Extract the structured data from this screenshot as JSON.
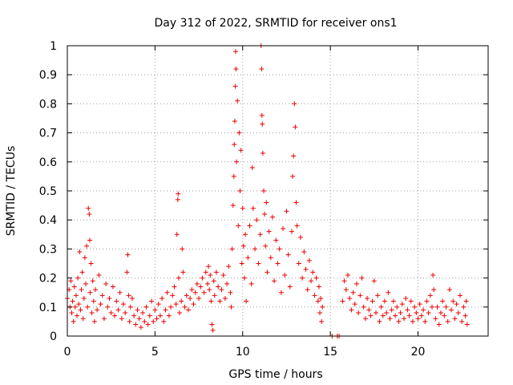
{
  "chart_data": {
    "type": "scatter",
    "title": "Day 312 of 2022, SRMTID for receiver ons1",
    "xlabel": "GPS time / hours",
    "ylabel": "SRMTID / TECUs",
    "xlim": [
      0,
      24
    ],
    "ylim": [
      0,
      1
    ],
    "xticks": [
      0,
      5,
      10,
      15,
      20
    ],
    "xtick_labels": [
      "0",
      "5",
      "10",
      "15",
      "20"
    ],
    "yticks": [
      0,
      0.1,
      0.2,
      0.3,
      0.4,
      0.5,
      0.6,
      0.7,
      0.8,
      0.9,
      1
    ],
    "ytick_labels": [
      "0",
      "0.1",
      "0.2",
      "0.3",
      "0.4",
      "0.5",
      "0.6",
      "0.7",
      "0.8",
      "0.9",
      "1"
    ],
    "grid": true,
    "marker": "+",
    "color": "#ee0000",
    "series": [
      {
        "name": "SRMTID",
        "points": [
          [
            0.0,
            0.13
          ],
          [
            0.1,
            0.16
          ],
          [
            0.15,
            0.1
          ],
          [
            0.2,
            0.19
          ],
          [
            0.25,
            0.08
          ],
          [
            0.3,
            0.12
          ],
          [
            0.35,
            0.05
          ],
          [
            0.4,
            0.17
          ],
          [
            0.45,
            0.1
          ],
          [
            0.5,
            0.14
          ],
          [
            0.55,
            0.07
          ],
          [
            0.6,
            0.2
          ],
          [
            0.65,
            0.11
          ],
          [
            0.7,
            0.29
          ],
          [
            0.75,
            0.09
          ],
          [
            0.8,
            0.16
          ],
          [
            0.85,
            0.22
          ],
          [
            0.9,
            0.06
          ],
          [
            0.95,
            0.13
          ],
          [
            1.0,
            0.27
          ],
          [
            1.05,
            0.18
          ],
          [
            1.1,
            0.31
          ],
          [
            1.15,
            0.1
          ],
          [
            1.2,
            0.44
          ],
          [
            1.25,
            0.42
          ],
          [
            1.28,
            0.33
          ],
          [
            1.3,
            0.15
          ],
          [
            1.35,
            0.25
          ],
          [
            1.4,
            0.08
          ],
          [
            1.45,
            0.19
          ],
          [
            1.5,
            0.12
          ],
          [
            1.55,
            0.05
          ],
          [
            1.6,
            0.16
          ],
          [
            1.7,
            0.09
          ],
          [
            1.8,
            0.21
          ],
          [
            1.9,
            0.11
          ],
          [
            2.0,
            0.14
          ],
          [
            2.1,
            0.06
          ],
          [
            2.2,
            0.18
          ],
          [
            2.3,
            0.1
          ],
          [
            2.4,
            0.13
          ],
          [
            2.5,
            0.08
          ],
          [
            2.6,
            0.17
          ],
          [
            2.7,
            0.07
          ],
          [
            2.8,
            0.12
          ],
          [
            2.9,
            0.09
          ],
          [
            3.0,
            0.15
          ],
          [
            3.1,
            0.06
          ],
          [
            3.2,
            0.11
          ],
          [
            3.3,
            0.08
          ],
          [
            3.4,
            0.22
          ],
          [
            3.45,
            0.28
          ],
          [
            3.5,
            0.14
          ],
          [
            3.55,
            0.05
          ],
          [
            3.6,
            0.1
          ],
          [
            3.7,
            0.13
          ],
          [
            3.8,
            0.07
          ],
          [
            3.9,
            0.04
          ],
          [
            4.0,
            0.09
          ],
          [
            4.1,
            0.06
          ],
          [
            4.2,
            0.03
          ],
          [
            4.3,
            0.08
          ],
          [
            4.4,
            0.05
          ],
          [
            4.5,
            0.1
          ],
          [
            4.6,
            0.04
          ],
          [
            4.7,
            0.07
          ],
          [
            4.8,
            0.12
          ],
          [
            4.9,
            0.05
          ],
          [
            5.0,
            0.09
          ],
          [
            5.1,
            0.06
          ],
          [
            5.2,
            0.11
          ],
          [
            5.3,
            0.07
          ],
          [
            5.4,
            0.13
          ],
          [
            5.5,
            0.05
          ],
          [
            5.6,
            0.09
          ],
          [
            5.7,
            0.15
          ],
          [
            5.8,
            0.07
          ],
          [
            5.9,
            0.1
          ],
          [
            6.0,
            0.14
          ],
          [
            6.1,
            0.17
          ],
          [
            6.2,
            0.11
          ],
          [
            6.25,
            0.35
          ],
          [
            6.3,
            0.47
          ],
          [
            6.32,
            0.49
          ],
          [
            6.35,
            0.2
          ],
          [
            6.4,
            0.08
          ],
          [
            6.5,
            0.12
          ],
          [
            6.55,
            0.3
          ],
          [
            6.6,
            0.22
          ],
          [
            6.7,
            0.1
          ],
          [
            6.8,
            0.14
          ],
          [
            6.9,
            0.09
          ],
          [
            7.0,
            0.13
          ],
          [
            7.1,
            0.16
          ],
          [
            7.2,
            0.11
          ],
          [
            7.3,
            0.15
          ],
          [
            7.4,
            0.18
          ],
          [
            7.5,
            0.13
          ],
          [
            7.6,
            0.17
          ],
          [
            7.7,
            0.2
          ],
          [
            7.8,
            0.15
          ],
          [
            7.9,
            0.22
          ],
          [
            8.0,
            0.18
          ],
          [
            8.05,
            0.24
          ],
          [
            8.1,
            0.16
          ],
          [
            8.15,
            0.21
          ],
          [
            8.2,
            0.12
          ],
          [
            8.25,
            0.04
          ],
          [
            8.3,
            0.02
          ],
          [
            8.35,
            0.19
          ],
          [
            8.4,
            0.14
          ],
          [
            8.5,
            0.22
          ],
          [
            8.6,
            0.17
          ],
          [
            8.7,
            0.12
          ],
          [
            8.8,
            0.16
          ],
          [
            8.9,
            0.21
          ],
          [
            9.0,
            0.13
          ],
          [
            9.1,
            0.18
          ],
          [
            9.2,
            0.24
          ],
          [
            9.3,
            0.15
          ],
          [
            9.35,
            0.1
          ],
          [
            9.4,
            0.3
          ],
          [
            9.45,
            0.45
          ],
          [
            9.5,
            0.55
          ],
          [
            9.52,
            0.66
          ],
          [
            9.55,
            0.74
          ],
          [
            9.58,
            0.86
          ],
          [
            9.6,
            0.98
          ],
          [
            9.62,
            0.92
          ],
          [
            9.65,
            0.6
          ],
          [
            9.7,
            0.81
          ],
          [
            9.75,
            0.38
          ],
          [
            9.8,
            0.7
          ],
          [
            9.85,
            0.5
          ],
          [
            9.9,
            0.64
          ],
          [
            9.95,
            0.25
          ],
          [
            10.0,
            0.44
          ],
          [
            10.05,
            0.31
          ],
          [
            10.1,
            0.2
          ],
          [
            10.15,
            0.35
          ],
          [
            10.2,
            0.12
          ],
          [
            10.3,
            0.27
          ],
          [
            10.4,
            0.38
          ],
          [
            10.5,
            0.18
          ],
          [
            10.55,
            0.58
          ],
          [
            10.6,
            0.44
          ],
          [
            10.7,
            0.3
          ],
          [
            10.8,
            0.4
          ],
          [
            10.9,
            0.25
          ],
          [
            11.0,
            0.35
          ],
          [
            11.05,
            1.0
          ],
          [
            11.08,
            0.92
          ],
          [
            11.1,
            0.76
          ],
          [
            11.12,
            0.73
          ],
          [
            11.15,
            0.63
          ],
          [
            11.2,
            0.5
          ],
          [
            11.25,
            0.42
          ],
          [
            11.3,
            0.31
          ],
          [
            11.35,
            0.46
          ],
          [
            11.4,
            0.22
          ],
          [
            11.5,
            0.36
          ],
          [
            11.6,
            0.27
          ],
          [
            11.7,
            0.41
          ],
          [
            11.8,
            0.19
          ],
          [
            11.9,
            0.33
          ],
          [
            12.0,
            0.25
          ],
          [
            12.1,
            0.3
          ],
          [
            12.2,
            0.15
          ],
          [
            12.3,
            0.37
          ],
          [
            12.4,
            0.21
          ],
          [
            12.5,
            0.43
          ],
          [
            12.6,
            0.28
          ],
          [
            12.7,
            0.17
          ],
          [
            12.8,
            0.36
          ],
          [
            12.85,
            0.55
          ],
          [
            12.9,
            0.62
          ],
          [
            12.95,
            0.8
          ],
          [
            13.0,
            0.72
          ],
          [
            13.05,
            0.46
          ],
          [
            13.1,
            0.38
          ],
          [
            13.2,
            0.25
          ],
          [
            13.3,
            0.34
          ],
          [
            13.4,
            0.2
          ],
          [
            13.5,
            0.29
          ],
          [
            13.6,
            0.23
          ],
          [
            13.7,
            0.16
          ],
          [
            13.8,
            0.26
          ],
          [
            13.9,
            0.19
          ],
          [
            14.0,
            0.22
          ],
          [
            14.1,
            0.14
          ],
          [
            14.2,
            0.2
          ],
          [
            14.3,
            0.12
          ],
          [
            14.35,
            0.17
          ],
          [
            14.4,
            0.08
          ],
          [
            14.45,
            0.13
          ],
          [
            14.5,
            0.05
          ],
          [
            14.55,
            0.1
          ],
          [
            15.1,
            0.0
          ],
          [
            15.4,
            0.0
          ],
          [
            15.5,
            0.0
          ],
          [
            15.7,
            0.12
          ],
          [
            15.8,
            0.19
          ],
          [
            15.9,
            0.16
          ],
          [
            16.0,
            0.21
          ],
          [
            16.1,
            0.13
          ],
          [
            16.2,
            0.09
          ],
          [
            16.3,
            0.15
          ],
          [
            16.4,
            0.11
          ],
          [
            16.5,
            0.18
          ],
          [
            16.6,
            0.08
          ],
          [
            16.7,
            0.14
          ],
          [
            16.8,
            0.2
          ],
          [
            16.9,
            0.1
          ],
          [
            17.0,
            0.06
          ],
          [
            17.1,
            0.13
          ],
          [
            17.2,
            0.09
          ],
          [
            17.3,
            0.07
          ],
          [
            17.4,
            0.12
          ],
          [
            17.5,
            0.19
          ],
          [
            17.6,
            0.08
          ],
          [
            17.7,
            0.14
          ],
          [
            17.8,
            0.05
          ],
          [
            17.9,
            0.1
          ],
          [
            18.0,
            0.07
          ],
          [
            18.1,
            0.12
          ],
          [
            18.2,
            0.08
          ],
          [
            18.3,
            0.15
          ],
          [
            18.4,
            0.06
          ],
          [
            18.5,
            0.09
          ],
          [
            18.6,
            0.12
          ],
          [
            18.7,
            0.07
          ],
          [
            18.8,
            0.1
          ],
          [
            18.9,
            0.05
          ],
          [
            19.0,
            0.08
          ],
          [
            19.1,
            0.11
          ],
          [
            19.2,
            0.06
          ],
          [
            19.3,
            0.13
          ],
          [
            19.4,
            0.09
          ],
          [
            19.5,
            0.07
          ],
          [
            19.6,
            0.12
          ],
          [
            19.7,
            0.05
          ],
          [
            19.8,
            0.1
          ],
          [
            19.9,
            0.08
          ],
          [
            20.0,
            0.06
          ],
          [
            20.1,
            0.11
          ],
          [
            20.2,
            0.07
          ],
          [
            20.3,
            0.09
          ],
          [
            20.4,
            0.05
          ],
          [
            20.5,
            0.12
          ],
          [
            20.6,
            0.08
          ],
          [
            20.7,
            0.14
          ],
          [
            20.8,
            0.1
          ],
          [
            20.85,
            0.21
          ],
          [
            20.9,
            0.16
          ],
          [
            21.0,
            0.06
          ],
          [
            21.1,
            0.1
          ],
          [
            21.2,
            0.04
          ],
          [
            21.3,
            0.08
          ],
          [
            21.4,
            0.12
          ],
          [
            21.5,
            0.07
          ],
          [
            21.6,
            0.1
          ],
          [
            21.7,
            0.05
          ],
          [
            21.8,
            0.16
          ],
          [
            21.9,
            0.09
          ],
          [
            22.0,
            0.12
          ],
          [
            22.1,
            0.06
          ],
          [
            22.2,
            0.11
          ],
          [
            22.3,
            0.08
          ],
          [
            22.4,
            0.14
          ],
          [
            22.5,
            0.05
          ],
          [
            22.6,
            0.1
          ],
          [
            22.7,
            0.07
          ],
          [
            22.75,
            0.12
          ],
          [
            22.8,
            0.04
          ]
        ]
      }
    ]
  }
}
